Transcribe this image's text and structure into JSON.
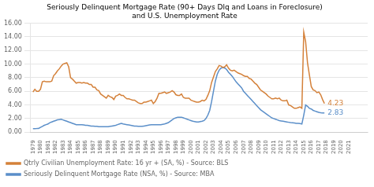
{
  "chart_data": {
    "type": "line",
    "title": [
      "Seriously Delinquent Mortgage Rate (90+ Days Dlq and Loans in Foreclosure)",
      "and U.S. Unemployment Rate"
    ],
    "x": [
      1979,
      1979.25,
      1979.5,
      1979.75,
      1980,
      1980.25,
      1980.5,
      1980.75,
      1981,
      1981.25,
      1981.5,
      1981.75,
      1982,
      1982.25,
      1982.5,
      1982.75,
      1983,
      1983.25,
      1983.5,
      1983.75,
      1984,
      1984.25,
      1984.5,
      1984.75,
      1985,
      1985.25,
      1985.5,
      1985.75,
      1986,
      1986.25,
      1986.5,
      1986.75,
      1987,
      1987.25,
      1987.5,
      1987.75,
      1988,
      1988.25,
      1988.5,
      1988.75,
      1989,
      1989.25,
      1989.5,
      1989.75,
      1990,
      1990.25,
      1990.5,
      1990.75,
      1991,
      1991.25,
      1991.5,
      1991.75,
      1992,
      1992.25,
      1992.5,
      1992.75,
      1993,
      1993.25,
      1993.5,
      1993.75,
      1994,
      1994.25,
      1994.5,
      1994.75,
      1995,
      1995.25,
      1995.5,
      1995.75,
      1996,
      1996.25,
      1996.5,
      1996.75,
      1997,
      1997.25,
      1997.5,
      1997.75,
      1998,
      1998.25,
      1998.5,
      1998.75,
      1999,
      1999.25,
      1999.5,
      1999.75,
      2000,
      2000.25,
      2000.5,
      2000.75,
      2001,
      2001.25,
      2001.5,
      2001.75,
      2002,
      2002.25,
      2002.5,
      2002.75,
      2003,
      2003.25,
      2003.5,
      2003.75,
      2004,
      2004.25,
      2004.5,
      2004.75,
      2005,
      2005.25,
      2005.5,
      2005.75,
      2006,
      2006.25,
      2006.5,
      2006.75,
      2007,
      2007.25,
      2007.5,
      2007.75,
      2008,
      2008.25,
      2008.5,
      2008.75,
      2009,
      2009.25,
      2009.5,
      2009.75,
      2010,
      2010.25,
      2010.5,
      2010.75,
      2011,
      2011.25,
      2011.5,
      2011.75,
      2012,
      2012.25,
      2012.5,
      2012.75,
      2013,
      2013.25,
      2013.5,
      2013.75,
      2014,
      2014.25,
      2014.5,
      2014.75,
      2015,
      2015.25,
      2015.5,
      2015.75,
      2016,
      2016.25,
      2016.5,
      2016.75,
      2017,
      2017.25,
      2017.5,
      2017.75
    ],
    "series": [
      {
        "name": "Qtrly Civilian Unemployment Rate: 16 yr + (SA, %) - Source: BLS",
        "color": "#d4813a",
        "values": [
          5.9,
          6.3,
          6.0,
          6.0,
          6.3,
          7.4,
          7.5,
          7.4,
          7.4,
          7.4,
          7.5,
          8.3,
          8.6,
          9.0,
          9.3,
          9.7,
          10.0,
          10.1,
          10.2,
          9.6,
          8.0,
          7.8,
          7.5,
          7.2,
          7.3,
          7.3,
          7.2,
          7.3,
          7.2,
          7.2,
          7.0,
          7.0,
          6.6,
          6.6,
          6.2,
          6.1,
          5.6,
          5.4,
          5.2,
          5.0,
          5.4,
          5.2,
          5.1,
          4.8,
          5.3,
          5.4,
          5.6,
          5.4,
          5.4,
          5.1,
          4.9,
          4.9,
          4.8,
          4.7,
          4.7,
          4.5,
          4.3,
          4.2,
          4.2,
          4.4,
          4.4,
          4.5,
          4.6,
          4.7,
          4.2,
          4.5,
          5.0,
          5.7,
          5.7,
          5.8,
          5.9,
          5.7,
          5.8,
          5.9,
          6.1,
          5.9,
          5.5,
          5.4,
          5.4,
          5.6,
          5.1,
          5.0,
          5.0,
          5.0,
          4.7,
          4.6,
          4.5,
          4.4,
          4.4,
          4.5,
          4.7,
          4.6,
          4.8,
          5.4,
          6.1,
          7.3,
          8.1,
          8.9,
          9.3,
          9.8,
          9.7,
          9.5,
          9.6,
          9.9,
          9.4,
          9.1,
          9.0,
          9.1,
          8.9,
          8.7,
          8.6,
          8.5,
          8.3,
          8.2,
          8.2,
          7.9,
          7.8,
          7.5,
          7.2,
          7.0,
          6.6,
          6.2,
          6.0,
          5.8,
          5.6,
          5.3,
          5.1,
          4.9,
          4.9,
          5.0,
          4.9,
          5.0,
          4.7,
          4.6,
          4.6,
          4.7,
          4.0,
          3.9,
          3.7,
          3.5,
          3.5,
          3.6,
          3.7,
          3.5,
          14.7,
          13.3,
          10.2,
          8.4,
          6.7,
          6.2,
          6.1,
          5.8,
          5.9,
          5.5,
          4.8,
          4.2
        ]
      },
      {
        "name": "Seriously Delinquent Mortgage Rate (NSA, %) - Source: MBA",
        "color": "#5b8fc9",
        "values": [
          0.5,
          0.52,
          0.53,
          0.55,
          0.7,
          0.85,
          1.0,
          1.1,
          1.2,
          1.4,
          1.5,
          1.6,
          1.7,
          1.8,
          1.85,
          1.9,
          1.8,
          1.7,
          1.6,
          1.5,
          1.4,
          1.3,
          1.2,
          1.1,
          1.1,
          1.1,
          1.1,
          1.05,
          1.0,
          1.0,
          0.95,
          0.9,
          0.9,
          0.85,
          0.85,
          0.8,
          0.8,
          0.8,
          0.8,
          0.8,
          0.8,
          0.85,
          0.9,
          0.95,
          1.0,
          1.1,
          1.2,
          1.3,
          1.2,
          1.15,
          1.1,
          1.05,
          1.0,
          0.95,
          0.9,
          0.88,
          0.85,
          0.85,
          0.85,
          0.9,
          0.95,
          1.0,
          1.05,
          1.1,
          1.1,
          1.1,
          1.1,
          1.1,
          1.1,
          1.15,
          1.2,
          1.3,
          1.4,
          1.6,
          1.8,
          2.0,
          2.1,
          2.2,
          2.2,
          2.2,
          2.1,
          2.0,
          1.9,
          1.8,
          1.7,
          1.6,
          1.55,
          1.5,
          1.5,
          1.55,
          1.6,
          1.7,
          2.0,
          2.5,
          3.2,
          4.5,
          6.0,
          7.5,
          8.5,
          9.1,
          9.4,
          9.5,
          9.4,
          9.2,
          8.8,
          8.5,
          8.2,
          7.8,
          7.4,
          7.1,
          6.8,
          6.5,
          6.0,
          5.7,
          5.4,
          5.1,
          4.8,
          4.5,
          4.2,
          3.9,
          3.6,
          3.3,
          3.1,
          2.9,
          2.7,
          2.5,
          2.3,
          2.1,
          2.0,
          1.9,
          1.8,
          1.7,
          1.65,
          1.6,
          1.55,
          1.5,
          1.45,
          1.4,
          1.38,
          1.35,
          1.3,
          1.28,
          1.25,
          1.2,
          2.5,
          4.0,
          3.8,
          3.5,
          3.4,
          3.2,
          3.1,
          3.0,
          2.9,
          2.85,
          2.83,
          2.83
        ]
      }
    ],
    "annotations": [
      {
        "text": "4.23",
        "x": 2017.75,
        "y": 4.2,
        "color": "#d4813a"
      },
      {
        "text": "2.83",
        "x": 2017.75,
        "y": 2.83,
        "color": "#5b8fc9"
      }
    ],
    "xlim": [
      1978.7,
      2023.5
    ],
    "xticks": [
      1979,
      1980,
      1981,
      1982,
      1983,
      1984,
      1985,
      1986,
      1987,
      1988,
      1989,
      1990,
      1991,
      1992,
      1993,
      1994,
      1995,
      1996,
      1997,
      1998,
      1999,
      2000,
      2001,
      2002,
      2003,
      2004,
      2005,
      2006,
      2007,
      2008,
      2009,
      2010,
      2011,
      2012,
      2013,
      2014,
      2015,
      2016,
      2017,
      2018,
      2019,
      2020,
      2021
    ],
    "ylim": [
      0,
      16
    ],
    "yticks": [
      {
        "value": 0,
        "label": "0.00"
      },
      {
        "value": 2,
        "label": "2.00"
      },
      {
        "value": 4,
        "label": "4.00"
      },
      {
        "value": 6,
        "label": "6.00"
      },
      {
        "value": 8,
        "label": "8.00"
      },
      {
        "value": 10,
        "label": "10.00"
      },
      {
        "value": 12,
        "label": "12.00"
      },
      {
        "value": 14,
        "label": "14.00"
      },
      {
        "value": 16,
        "label": "16.00"
      }
    ],
    "grid": "y",
    "legend": "bottom"
  }
}
